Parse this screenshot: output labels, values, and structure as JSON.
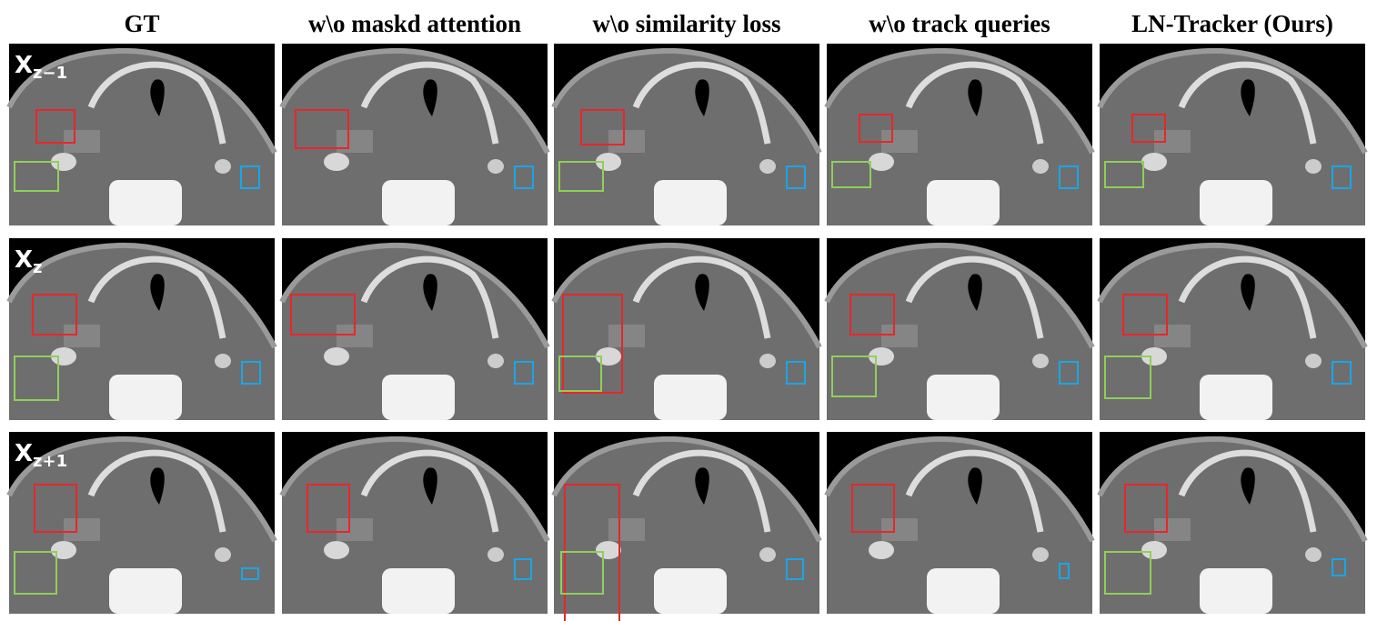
{
  "columns": [
    "GT",
    "w\\o maskd attention",
    "w\\o similarity loss",
    "w\\o track queries",
    "LN-Tracker (Ours)"
  ],
  "rows": [
    {
      "main": "X",
      "sub": "z−1"
    },
    {
      "main": "X",
      "sub": "z"
    },
    {
      "main": "X",
      "sub": "z+1"
    }
  ]
}
